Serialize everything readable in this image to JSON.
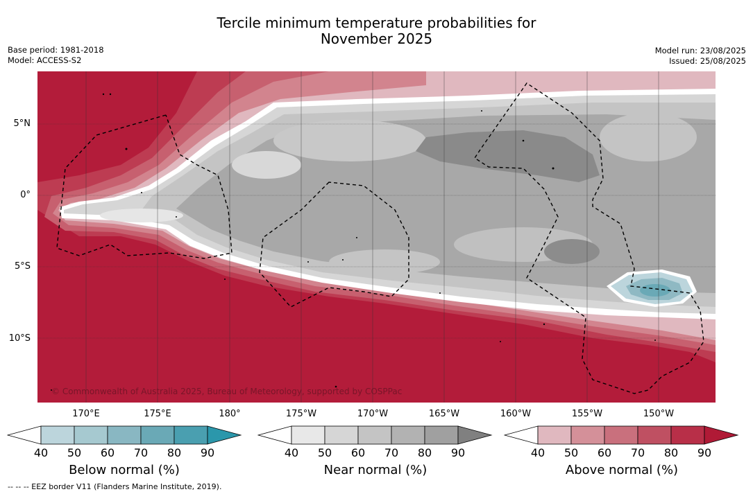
{
  "title_line1": "Tercile minimum temperature probabilities for",
  "title_line2": "November 2025",
  "base_period": "Base period: 1981-2018",
  "model": "Model: ACCESS-S2",
  "model_run": "Model run: 23/08/2025",
  "issued": "Issued: 25/08/2025",
  "credit": "© Commonwealth of Australia 2025, Bureau of Meteorology, supported by COSPPac",
  "lat_labels": [
    "5°N",
    "0°",
    "5°S",
    "10°S"
  ],
  "lon_labels": [
    "170°E",
    "175°E",
    "180°",
    "175°W",
    "170°W",
    "165°W",
    "160°W",
    "155°W",
    "150°W"
  ],
  "legend": {
    "below": {
      "title": "Below normal (%)",
      "ticks": [
        "40",
        "50",
        "60",
        "70",
        "80",
        "90"
      ],
      "colors": [
        "#ffffff",
        "#bcd5dc",
        "#a6c9d0",
        "#89b7c2",
        "#6aa9b6",
        "#4a9fb0",
        "#2b97ab"
      ]
    },
    "near": {
      "title": "Near normal (%)",
      "ticks": [
        "40",
        "50",
        "60",
        "70",
        "80",
        "90"
      ],
      "colors": [
        "#ffffff",
        "#e8e8e8",
        "#d6d6d6",
        "#c4c4c4",
        "#b2b2b2",
        "#a0a0a0",
        "#808080"
      ]
    },
    "above": {
      "title": "Above normal (%)",
      "ticks": [
        "40",
        "50",
        "60",
        "70",
        "80",
        "90"
      ],
      "colors": [
        "#ffffff",
        "#e0b8bf",
        "#d49099",
        "#c9707d",
        "#bf5062",
        "#b82f48",
        "#b01a36"
      ]
    }
  },
  "footer": "--  --  -- EEZ border V11 (Flanders Marine Institute, 2019)."
}
